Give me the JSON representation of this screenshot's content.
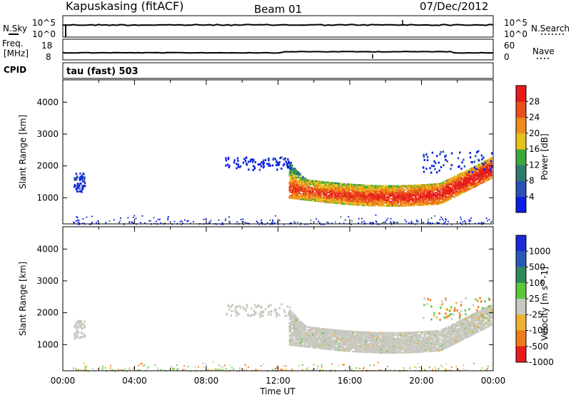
{
  "header": {
    "station": "Kapuskasing (fitACF)",
    "beam": "Beam 01",
    "date": "07/Dec/2012"
  },
  "strips": {
    "nsky_label": "N.Sky",
    "nsky_ticks": [
      "10^5",
      "10^0"
    ],
    "nsearch_label": "N.Search",
    "nsearch_ticks": [
      "10^5",
      "10^0"
    ],
    "freq_label_1": "Freq.",
    "freq_label_2": "[MHz]",
    "freq_ticks": [
      "18",
      "8"
    ],
    "nave_label": "Nave",
    "nave_ticks": [
      "60",
      "0"
    ],
    "cpid_label": "CPID",
    "cpid_value": "tau (fast) 503"
  },
  "chart_data": [
    {
      "type": "heatmap",
      "name": "power",
      "ylabel": "Slant Range [km]",
      "xlabel": "Time UT",
      "yticks": [
        1000,
        2000,
        3000,
        4000
      ],
      "ylim": [
        180,
        4700
      ],
      "xlim": [
        0,
        24
      ],
      "xticks": [
        "00:00",
        "04:00",
        "08:00",
        "12:00",
        "16:00",
        "20:00",
        "00:00"
      ],
      "colorbar": {
        "label": "Power [dB]",
        "ticks": [
          "4",
          "8",
          "12",
          "16",
          "20",
          "24",
          "28"
        ],
        "colors": [
          "#0a1ee6",
          "#2a4fb8",
          "#2f7a6c",
          "#3aa83a",
          "#e6c21a",
          "#f08a1a",
          "#e8501a",
          "#e81a1a"
        ]
      },
      "regions": [
        {
          "t0": 12.7,
          "t1": 23.9,
          "r0": 900,
          "r1": 1900,
          "level": "mid"
        },
        {
          "t0": 9.0,
          "t1": 12.7,
          "r0": 1900,
          "r1": 2300,
          "level": "low"
        },
        {
          "t0": 0.6,
          "t1": 1.2,
          "r0": 1200,
          "r1": 1800,
          "level": "low"
        },
        {
          "t0": 0.5,
          "t1": 24,
          "r0": 180,
          "r1": 450,
          "level": "low"
        }
      ]
    },
    {
      "type": "heatmap",
      "name": "velocity",
      "ylabel": "Slant Range [km]",
      "xlabel": "Time UT",
      "yticks": [
        1000,
        2000,
        3000,
        4000
      ],
      "ylim": [
        180,
        4700
      ],
      "xlim": [
        0,
        24
      ],
      "xticks": [
        "00:00",
        "04:00",
        "08:00",
        "12:00",
        "16:00",
        "20:00",
        "00:00"
      ],
      "colorbar": {
        "label": "Velocity [m s^-1]",
        "ticks": [
          "1000",
          "500",
          "100",
          "25",
          "-25",
          "-100",
          "-500",
          "-1000"
        ],
        "colors": [
          "#1a2ad8",
          "#2a5ab8",
          "#2e8a5a",
          "#5ac83a",
          "#c8c8c0",
          "#f0b030",
          "#f07a1a",
          "#e81a1a"
        ]
      }
    }
  ],
  "axis": {
    "time_label": "Time UT"
  }
}
